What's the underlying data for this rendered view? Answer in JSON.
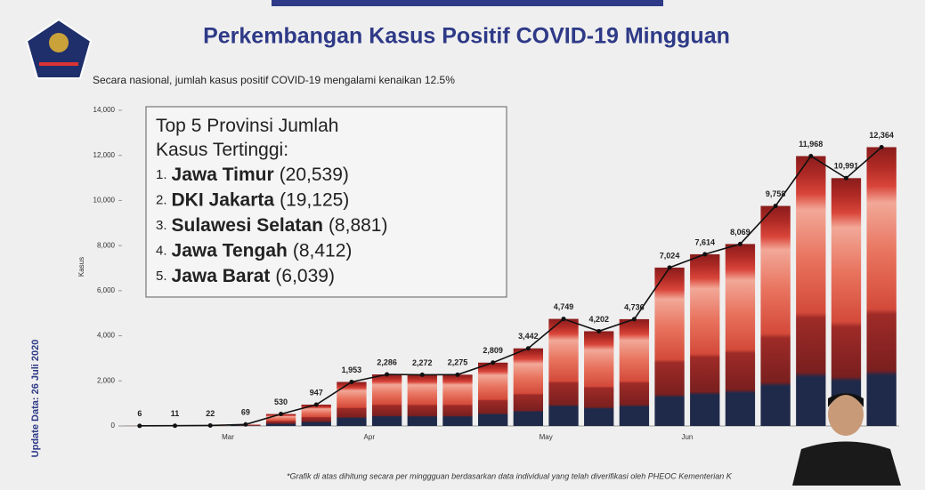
{
  "chart_data": {
    "type": "bar",
    "title": "Perkembangan Kasus Positif COVID-19 Mingguan",
    "subtitle": "Secara nasional, jumlah kasus positif COVID-19 mengalami kenaikan 12.5%",
    "y_label": "Kasus",
    "side_note": "Update Data: 26 Juli 2020",
    "footnote": "*Grafik di atas dihitung secara per minggguan berdasarkan data individual yang telah diverifikasi oleh PHEOC Kementerian K",
    "box": {
      "title": "Top 5 Provinsi Jumlah Kasus Tertinggi:",
      "items": [
        {
          "rank": "1.",
          "name": "Jawa Timur",
          "cases": "(20,539)"
        },
        {
          "rank": "2.",
          "name": "DKI Jakarta",
          "cases": "(19,125)"
        },
        {
          "rank": "3.",
          "name": "Sulawesi Selatan",
          "cases": "(8,881)"
        },
        {
          "rank": "4.",
          "name": "Jawa Tengah",
          "cases": "(8,412)"
        },
        {
          "rank": "5.",
          "name": "Jawa Barat",
          "cases": "(6,039)"
        }
      ]
    },
    "categories": [
      null,
      null,
      null,
      "Mar",
      null,
      null,
      null,
      "Apr",
      null,
      null,
      null,
      null,
      "May",
      null,
      null,
      null,
      "Jun",
      null,
      null,
      null,
      null,
      null
    ],
    "values": [
      6,
      11,
      22,
      69,
      530,
      947,
      1953,
      2286,
      2272,
      2275,
      2809,
      3442,
      4749,
      4202,
      4736,
      7024,
      7614,
      8069,
      9758,
      11968,
      10991,
      12364
    ],
    "value_labels": [
      "6",
      "11",
      "22",
      "69",
      "530",
      "947",
      "1,953",
      "2,286",
      "2,272",
      "2,275",
      "2,809",
      "3,442",
      "4,749",
      "4,202",
      "4,736",
      "7,024",
      "7,614",
      "8,069",
      "9,758",
      "11,968",
      "10,991",
      "12,364"
    ],
    "color": "#c0392b",
    "ylim": [
      0,
      14000
    ],
    "yticks": [
      0,
      {
        "value": 2000,
        "label": "2,000"
      },
      {
        "value": 4000,
        "label": "4,000"
      },
      {
        "value": 6000,
        "label": "6,000"
      },
      {
        "value": 8000,
        "label": "8,000"
      },
      {
        "value": 10000,
        "label": "10,000"
      },
      {
        "value": 12000,
        "label": "12,000"
      },
      {
        "value": 14000,
        "label": "14,000"
      }
    ]
  }
}
